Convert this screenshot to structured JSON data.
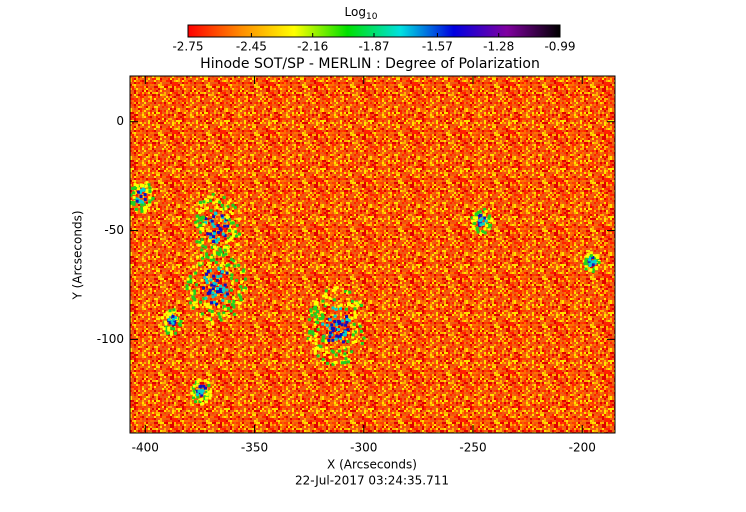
{
  "chart_data": {
    "type": "heatmap",
    "title": "Hinode SOT/SP - MERLIN : Degree of Polarization",
    "x_label": "X (Arcseconds)",
    "y_label": "Y (Arcseconds)",
    "timestamp": "22-Jul-2017 03:24:35.711",
    "colorbar_label": "Log",
    "colorbar_label_subscript": "10",
    "colorbar_lim": [
      -2.75,
      -0.99
    ],
    "colorbar_ticks": [
      -2.75,
      -2.45,
      -2.16,
      -1.87,
      -1.57,
      -1.28,
      -0.99
    ],
    "colorscale": [
      "#ff0000",
      "#ff8c00",
      "#ffff00",
      "#00e000",
      "#00e0e0",
      "#0000e0",
      "#8000a0",
      "#000000"
    ],
    "xlim": [
      -407,
      -185
    ],
    "xticks": [
      -400,
      -350,
      -300,
      -250,
      -200
    ],
    "ylim": [
      -143,
      21
    ],
    "yticks": [
      0,
      -50,
      -100
    ]
  }
}
